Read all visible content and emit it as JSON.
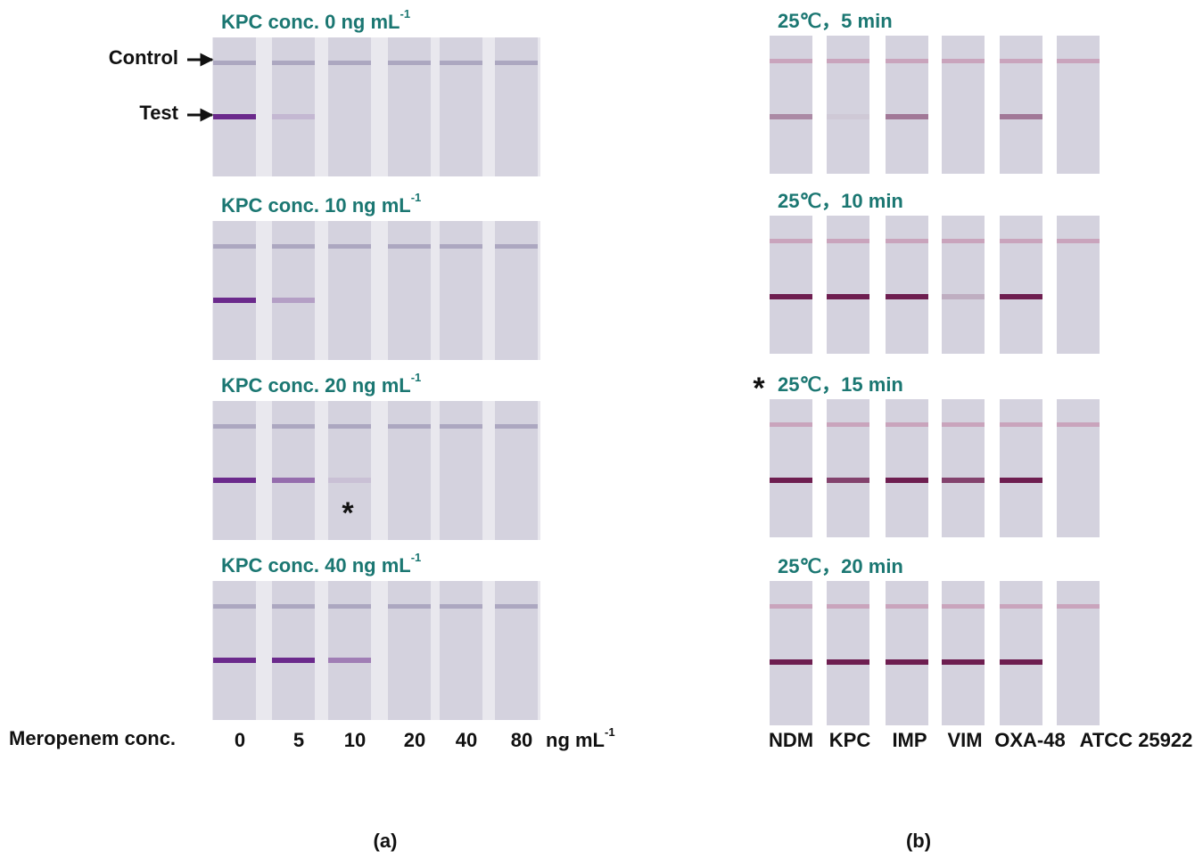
{
  "panel_a": {
    "rows": [
      {
        "title": "KPC conc. 0 ng mL",
        "title_sup": "-1"
      },
      {
        "title": "KPC conc. 10 ng mL",
        "title_sup": "-1"
      },
      {
        "title": "KPC conc. 20 ng mL",
        "title_sup": "-1"
      },
      {
        "title": "KPC conc. 40 ng mL",
        "title_sup": "-1"
      }
    ],
    "control_label": "Control",
    "test_label": "Test",
    "asterisk": "*",
    "x_label": "Meropenem conc.",
    "x_values": [
      "0",
      "5",
      "10",
      "20",
      "40",
      "80"
    ],
    "x_unit": "ng mL",
    "x_unit_sup": "-1",
    "caption": "(a)"
  },
  "panel_b": {
    "rows": [
      "25℃，5 min",
      "25℃，10 min",
      "25℃，15 min",
      "25℃，20 min"
    ],
    "asterisk": "*",
    "strains": [
      "NDM",
      "KPC",
      "IMP",
      "VIM",
      "OXA-48",
      "ATCC 25922"
    ],
    "caption": "(b)"
  }
}
